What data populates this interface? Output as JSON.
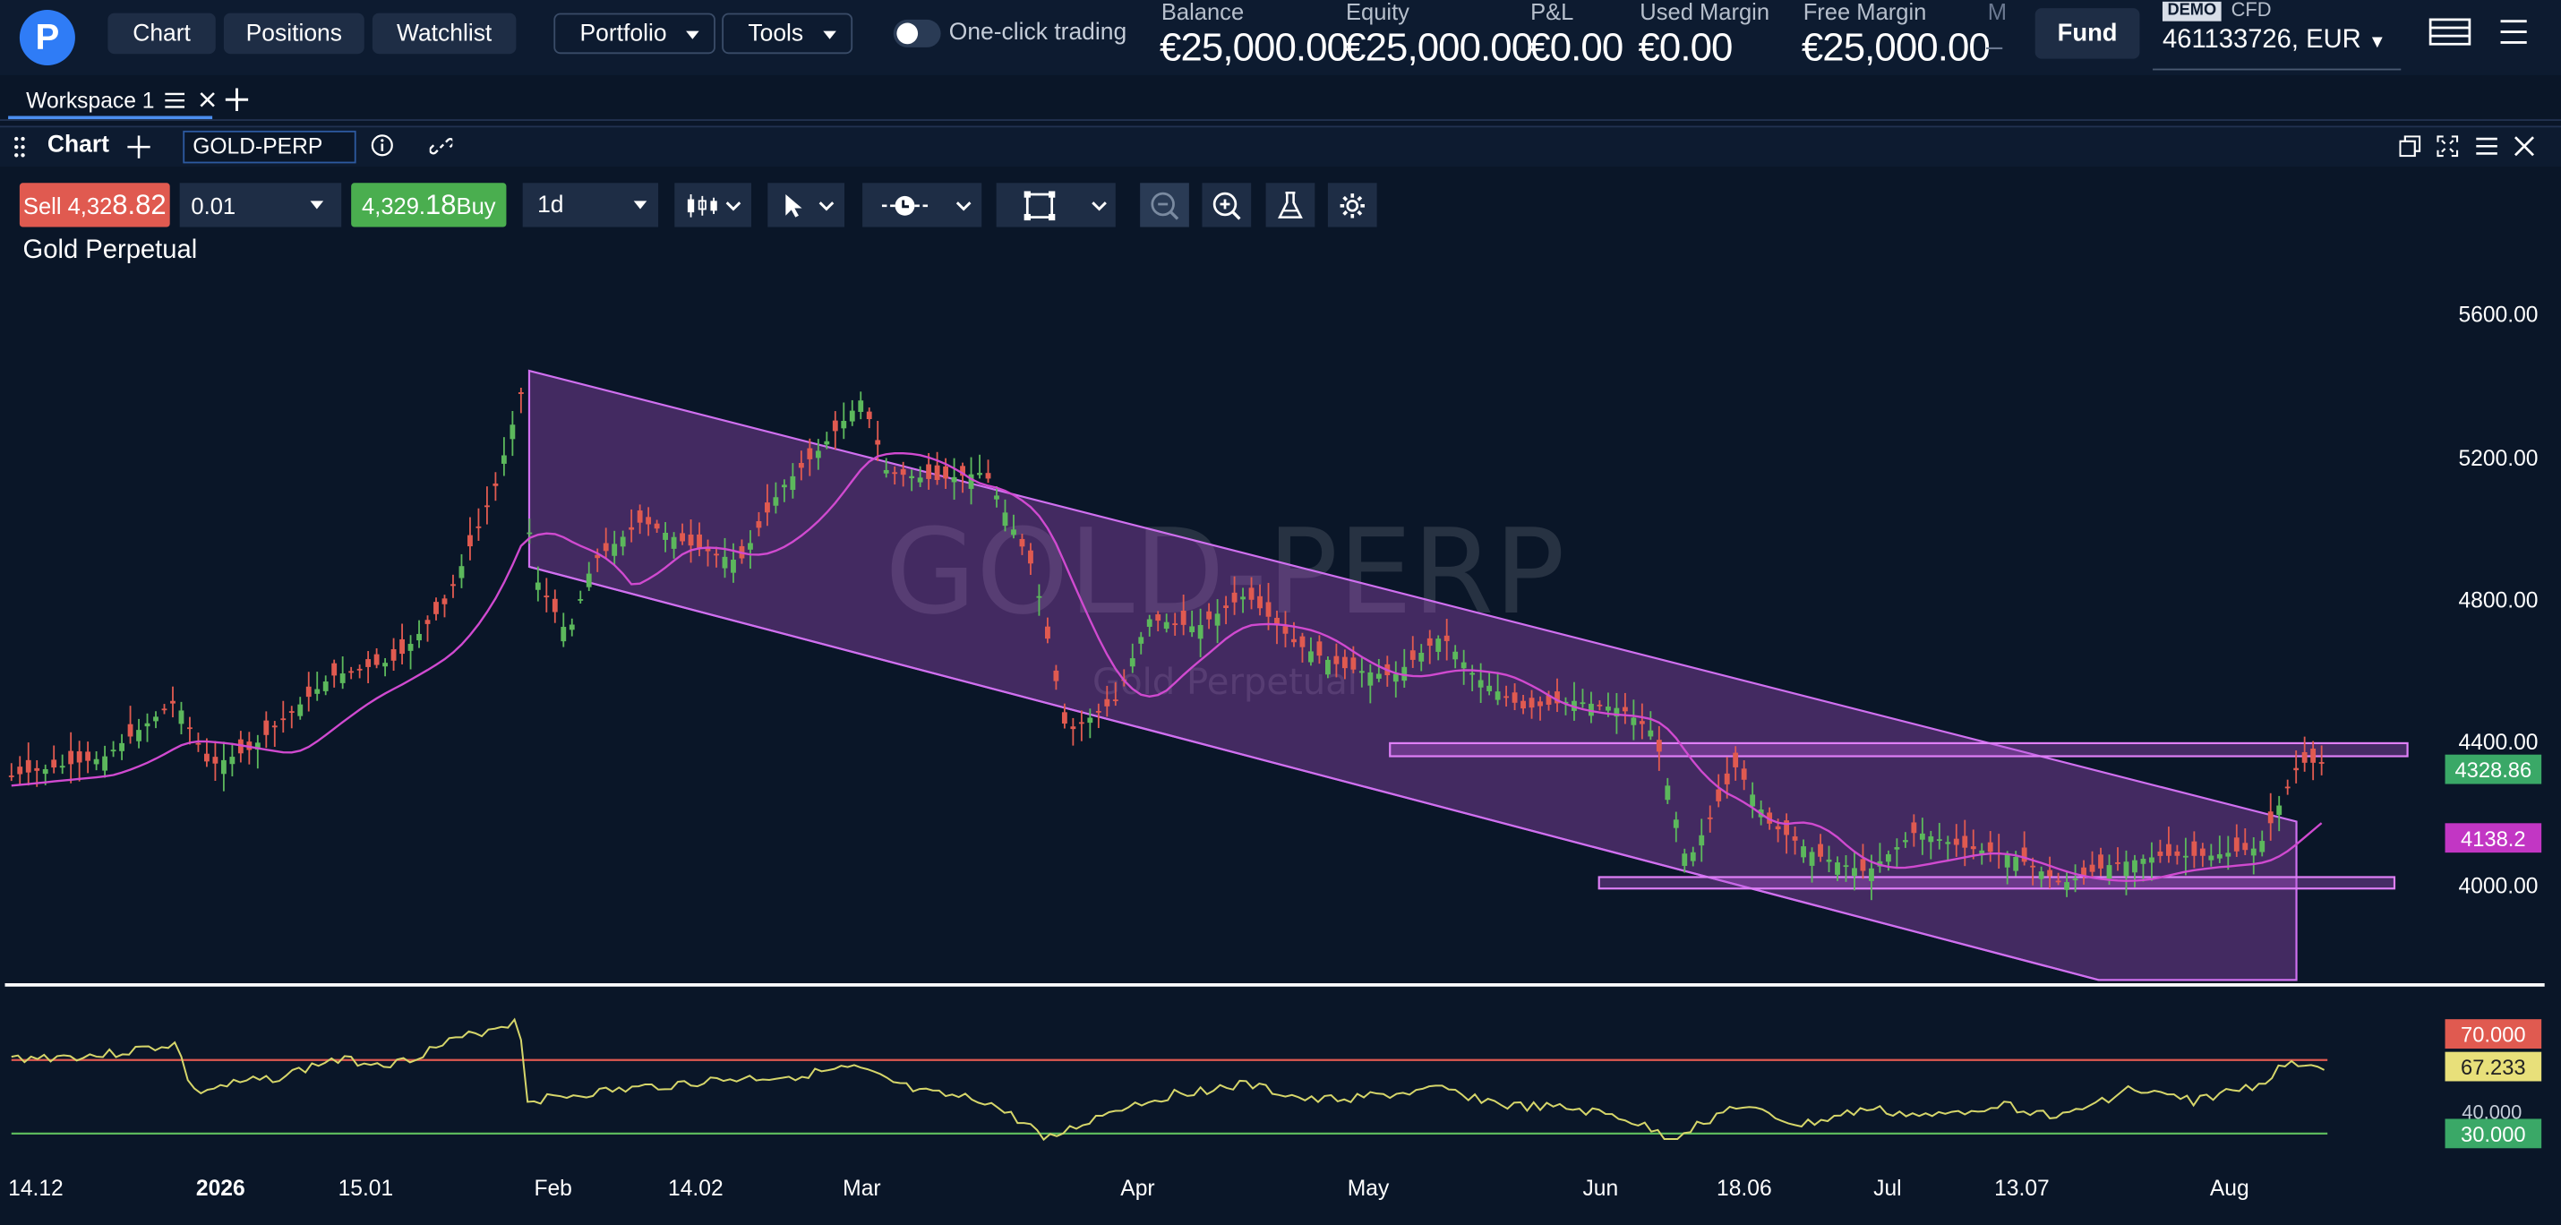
{
  "nav": {
    "logo": "P",
    "chart": "Chart",
    "positions": "Positions",
    "watchlist": "Watchlist",
    "portfolio": "Portfolio",
    "tools": "Tools",
    "one_click": "One-click trading",
    "one_click_enabled": false
  },
  "stats": [
    {
      "label": "Balance",
      "value": "€25,000.00"
    },
    {
      "label": "Equity",
      "value": "€25,000.00"
    },
    {
      "label": "P&L",
      "value": "€0.00"
    },
    {
      "label": "Used Margin",
      "value": "€0.00"
    },
    {
      "label": "Free Margin",
      "value": "€25,000.00"
    },
    {
      "label": "M",
      "value": "–"
    }
  ],
  "account": {
    "fund": "Fund",
    "demo": "DEMO",
    "type": "CFD",
    "id": "461133726, EUR"
  },
  "workspace": {
    "name": "Workspace 1"
  },
  "panel": {
    "title": "Chart",
    "symbol": "GOLD-PERP"
  },
  "toolbar": {
    "sell_prefix": "Sell 4,32",
    "sell_big": "8.82",
    "quantity": "0.01",
    "buy_prefix": "4,329.",
    "buy_big": "18",
    "buy_suffix": " Buy",
    "timeframe": "1d"
  },
  "chart": {
    "instrument_name": "Gold Perpetual",
    "watermark_symbol": "GOLD-PERP",
    "watermark_name": "Gold Perpetual",
    "y_ticks": [
      "5600.00",
      "5200.00",
      "4800.00",
      "4400.00",
      "4000.00"
    ],
    "last_price": "4328.86",
    "ma_value": "4138.2",
    "x_ticks": [
      {
        "label": "14.12",
        "bold": false
      },
      {
        "label": "2026",
        "bold": true
      },
      {
        "label": "15.01",
        "bold": false
      },
      {
        "label": "Feb",
        "bold": false
      },
      {
        "label": "14.02",
        "bold": false
      },
      {
        "label": "Mar",
        "bold": false
      },
      {
        "label": "Apr",
        "bold": false
      },
      {
        "label": "May",
        "bold": false
      },
      {
        "label": "Jun",
        "bold": false
      },
      {
        "label": "18.06",
        "bold": false
      },
      {
        "label": "Jul",
        "bold": false
      },
      {
        "label": "13.07",
        "bold": false
      },
      {
        "label": "Aug",
        "bold": false
      }
    ],
    "rsi": {
      "upper": "70.000",
      "current": "67.233",
      "mid": "40.000",
      "lower": "30.000"
    },
    "colors": {
      "up": "#5cb85c",
      "down": "#e05a50",
      "ma": "#d04ad0",
      "channel": "#b855d8",
      "rsi": "#d6d66a",
      "rsi_upper": "#e05a50",
      "rsi_lower": "#5cb85c"
    }
  }
}
